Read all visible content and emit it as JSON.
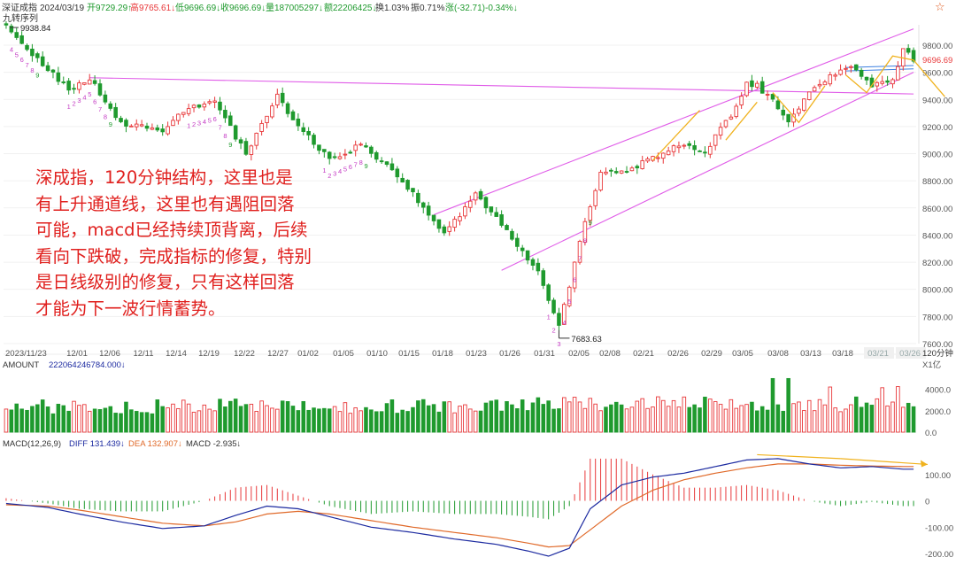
{
  "header": {
    "name": "深证成指",
    "date": "2024/03/19",
    "open": "开9729.29↑",
    "high": "高9765.61↓",
    "low": "低9696.69↓",
    "close": "收9696.69↓",
    "volume": "量187005297↓",
    "amount": "额22206425↓",
    "turnover": "换1.03%",
    "amplitude": "振0.71%",
    "change": "涨(-32.71)-0.34%↓",
    "indicator": "九转序列",
    "star": "☆"
  },
  "annotation": "深成指，120分钟结构，这里也是\n有上升通道线，这里也有遇阻回落\n可能，macd已经持续顶背离，后续\n看向下跌破，完成指标的修复，特别\n是日线级别的修复，只有这样回落\n才能为下一波行情蓄势。",
  "colors": {
    "up": "#e8383a",
    "down": "#1f9a2e",
    "channel": "#e05ce8",
    "annotation": "#e0201e",
    "arrow": "#f0b21e",
    "diff": "#1c2aa0",
    "dea": "#e06a2a",
    "blueline": "#3c7fe0"
  },
  "chart_data": {
    "type": "candlestick",
    "price": {
      "ylim": [
        7600,
        9950
      ],
      "yticks": [
        "9800.00",
        "9600.00",
        "9400.00",
        "9200.00",
        "9000.00",
        "8800.00",
        "8600.00",
        "8400.00",
        "8200.00",
        "8000.00",
        "7800.00",
        "7600.00"
      ],
      "current_label": "9696.69",
      "high_label": "9938.84",
      "low_label": "7683.63",
      "dates": [
        "2023/11/23",
        "12/01",
        "12/06",
        "12/11",
        "12/14",
        "12/19",
        "12/22",
        "12/27",
        "01/02",
        "01/05",
        "01/10",
        "01/15",
        "01/18",
        "01/23",
        "01/26",
        "01/31",
        "02/05",
        "02/08",
        "02/21",
        "02/26",
        "02/29",
        "03/05",
        "03/08",
        "03/13",
        "03/18",
        "03/21",
        "03/26"
      ],
      "period_label": "120分钟",
      "anchors": [
        [
          0,
          9930
        ],
        [
          6,
          9700
        ],
        [
          12,
          9470
        ],
        [
          16,
          9560
        ],
        [
          22,
          9230
        ],
        [
          30,
          9160
        ],
        [
          34,
          9320
        ],
        [
          40,
          9380
        ],
        [
          46,
          9000
        ],
        [
          52,
          9430
        ],
        [
          56,
          9200
        ],
        [
          62,
          8960
        ],
        [
          68,
          9060
        ],
        [
          74,
          8890
        ],
        [
          80,
          8610
        ],
        [
          84,
          8410
        ],
        [
          90,
          8700
        ],
        [
          95,
          8480
        ],
        [
          102,
          8120
        ],
        [
          106,
          7720
        ],
        [
          110,
          8350
        ],
        [
          114,
          8880
        ],
        [
          118,
          8860
        ],
        [
          124,
          8970
        ],
        [
          130,
          9080
        ],
        [
          134,
          9020
        ],
        [
          140,
          9330
        ],
        [
          142,
          9520
        ],
        [
          144,
          9500
        ],
        [
          146,
          9430
        ],
        [
          150,
          9250
        ],
        [
          156,
          9530
        ],
        [
          162,
          9640
        ],
        [
          166,
          9500
        ],
        [
          170,
          9560
        ],
        [
          172,
          9760
        ],
        [
          174,
          9700
        ]
      ],
      "nine_turn_up": [
        {
          "label": "4",
          "i": 1
        },
        {
          "label": "5",
          "i": 2
        },
        {
          "label": "6",
          "i": 3
        },
        {
          "label": "7",
          "i": 4
        },
        {
          "label": "8",
          "i": 5
        },
        {
          "label": "9",
          "i": 6
        }
      ],
      "nine_turn_seq": [
        {
          "label": "1",
          "i": 12
        },
        {
          "label": "2",
          "i": 13
        },
        {
          "label": "3",
          "i": 14
        },
        {
          "label": "4",
          "i": 15
        },
        {
          "label": "5",
          "i": 16
        },
        {
          "label": "6",
          "i": 17
        },
        {
          "label": "7",
          "i": 18
        },
        {
          "label": "8",
          "i": 19
        },
        {
          "label": "9",
          "i": 20
        },
        {
          "label": "1",
          "i": 35
        },
        {
          "label": "2",
          "i": 36
        },
        {
          "label": "3",
          "i": 37
        },
        {
          "label": "4",
          "i": 38
        },
        {
          "label": "5",
          "i": 39
        },
        {
          "label": "6",
          "i": 40
        },
        {
          "label": "7",
          "i": 41
        },
        {
          "label": "8",
          "i": 42
        },
        {
          "label": "9",
          "i": 43
        },
        {
          "label": "1",
          "i": 61
        },
        {
          "label": "2",
          "i": 62
        },
        {
          "label": "3",
          "i": 63
        },
        {
          "label": "4",
          "i": 64
        },
        {
          "label": "5",
          "i": 65
        },
        {
          "label": "6",
          "i": 66
        },
        {
          "label": "7",
          "i": 67
        },
        {
          "label": "8",
          "i": 68
        },
        {
          "label": "9",
          "i": 69
        },
        {
          "label": "1",
          "i": 104
        },
        {
          "label": "2",
          "i": 105
        },
        {
          "label": "3",
          "i": 106
        },
        {
          "label": "4",
          "i": 107
        },
        {
          "label": "5",
          "i": 108
        },
        {
          "label": "6",
          "i": 109
        },
        {
          "label": "7",
          "i": 110
        },
        {
          "label": "8",
          "i": 111
        },
        {
          "label": "9",
          "i": 112
        }
      ]
    },
    "amount": {
      "label": "AMOUNT",
      "value": "22206424678​4.000↓",
      "unit": "X1亿",
      "yticks": [
        "4000.0",
        "2000.0",
        "0.0"
      ],
      "ylim": [
        0,
        5200
      ]
    },
    "macd": {
      "label": "MACD(12,26,9)",
      "diff": "DIFF  131.439↓",
      "dea": "DEA  132.907↓",
      "macd": "MACD  -2.935↓",
      "yticks": [
        "100.00",
        "0",
        "-100.00",
        "-200.00"
      ],
      "ylim": [
        -230,
        200
      ],
      "diff_anchors": [
        [
          0,
          -10
        ],
        [
          8,
          -25
        ],
        [
          14,
          -50
        ],
        [
          22,
          -80
        ],
        [
          30,
          -105
        ],
        [
          38,
          -95
        ],
        [
          44,
          -55
        ],
        [
          50,
          -20
        ],
        [
          56,
          -30
        ],
        [
          62,
          -60
        ],
        [
          70,
          -100
        ],
        [
          78,
          -120
        ],
        [
          86,
          -145
        ],
        [
          94,
          -165
        ],
        [
          100,
          -190
        ],
        [
          104,
          -210
        ],
        [
          108,
          -180
        ],
        [
          112,
          -30
        ],
        [
          118,
          60
        ],
        [
          124,
          90
        ],
        [
          130,
          105
        ],
        [
          136,
          130
        ],
        [
          142,
          155
        ],
        [
          148,
          160
        ],
        [
          154,
          140
        ],
        [
          160,
          125
        ],
        [
          166,
          130
        ],
        [
          172,
          120
        ],
        [
          174,
          120
        ]
      ],
      "dea_anchors": [
        [
          0,
          -15
        ],
        [
          8,
          -20
        ],
        [
          14,
          -35
        ],
        [
          22,
          -60
        ],
        [
          30,
          -85
        ],
        [
          38,
          -95
        ],
        [
          44,
          -80
        ],
        [
          50,
          -50
        ],
        [
          56,
          -40
        ],
        [
          62,
          -50
        ],
        [
          70,
          -75
        ],
        [
          78,
          -100
        ],
        [
          86,
          -120
        ],
        [
          94,
          -140
        ],
        [
          100,
          -160
        ],
        [
          104,
          -175
        ],
        [
          108,
          -170
        ],
        [
          112,
          -110
        ],
        [
          118,
          -20
        ],
        [
          124,
          40
        ],
        [
          130,
          80
        ],
        [
          136,
          105
        ],
        [
          142,
          125
        ],
        [
          148,
          140
        ],
        [
          154,
          140
        ],
        [
          160,
          135
        ],
        [
          166,
          132
        ],
        [
          172,
          130
        ],
        [
          174,
          130
        ]
      ]
    }
  }
}
